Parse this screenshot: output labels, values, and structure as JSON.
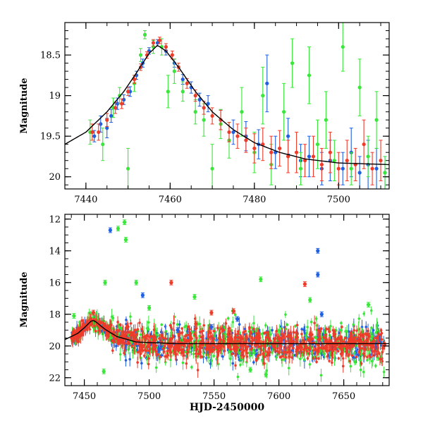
{
  "chart_data": [
    {
      "type": "scatter",
      "panel": "top",
      "title": "",
      "xlabel": "",
      "ylabel": "Magnitude",
      "xlim": [
        7435,
        7512
      ],
      "ylim": [
        20.15,
        18.1
      ],
      "y_inverted": true,
      "xticks": [
        7440,
        7460,
        7480,
        7500
      ],
      "yticks": [
        18.5,
        19,
        19.5,
        20
      ],
      "ytick_labels": [
        "18.5",
        "19",
        "19.5",
        "20"
      ],
      "grid": false,
      "legend": "none",
      "series": [
        {
          "color": "#1f5fe0",
          "points": [
            {
              "x": 7442,
              "y": 19.5,
              "err": 0.07
            },
            {
              "x": 7443.5,
              "y": 19.35,
              "err": 0.1
            },
            {
              "x": 7445,
              "y": 19.4,
              "err": 0.12
            },
            {
              "x": 7446,
              "y": 19.25,
              "err": 0.08
            },
            {
              "x": 7447.5,
              "y": 19.1,
              "err": 0.07
            },
            {
              "x": 7449,
              "y": 19.05,
              "err": 0.06
            },
            {
              "x": 7450.5,
              "y": 18.95,
              "err": 0.06
            },
            {
              "x": 7452,
              "y": 18.75,
              "err": 0.05
            },
            {
              "x": 7453.5,
              "y": 18.6,
              "err": 0.05
            },
            {
              "x": 7455,
              "y": 18.45,
              "err": 0.04
            },
            {
              "x": 7457,
              "y": 18.35,
              "err": 0.04
            },
            {
              "x": 7459,
              "y": 18.45,
              "err": 0.05
            },
            {
              "x": 7461,
              "y": 18.6,
              "err": 0.05
            },
            {
              "x": 7463,
              "y": 18.8,
              "err": 0.06
            },
            {
              "x": 7465,
              "y": 18.9,
              "err": 0.07
            },
            {
              "x": 7467,
              "y": 19.05,
              "err": 0.08
            },
            {
              "x": 7469,
              "y": 19.1,
              "err": 0.1
            },
            {
              "x": 7472,
              "y": 19.3,
              "err": 0.12
            },
            {
              "x": 7475,
              "y": 19.45,
              "err": 0.15
            },
            {
              "x": 7478,
              "y": 19.5,
              "err": 0.18
            },
            {
              "x": 7481,
              "y": 19.6,
              "err": 0.18
            },
            {
              "x": 7483,
              "y": 18.85,
              "err": 0.35
            },
            {
              "x": 7485,
              "y": 19.7,
              "err": 0.2
            },
            {
              "x": 7488,
              "y": 19.5,
              "err": 0.22
            },
            {
              "x": 7491,
              "y": 19.8,
              "err": 0.2
            },
            {
              "x": 7493,
              "y": 19.75,
              "err": 0.25
            },
            {
              "x": 7496,
              "y": 19.9,
              "err": 0.2
            },
            {
              "x": 7498,
              "y": 19.8,
              "err": 0.25
            },
            {
              "x": 7501,
              "y": 19.9,
              "err": 0.2
            },
            {
              "x": 7503,
              "y": 19.7,
              "err": 0.3
            },
            {
              "x": 7505,
              "y": 19.95,
              "err": 0.2
            },
            {
              "x": 7507,
              "y": 19.85,
              "err": 0.3
            },
            {
              "x": 7509,
              "y": 19.9,
              "err": 0.25
            },
            {
              "x": 7511,
              "y": 19.95,
              "err": 0.2
            }
          ]
        },
        {
          "color": "#39e639",
          "points": [
            {
              "x": 7441,
              "y": 19.45,
              "err": 0.15
            },
            {
              "x": 7444,
              "y": 19.6,
              "err": 0.2
            },
            {
              "x": 7446.5,
              "y": 19.15,
              "err": 0.12
            },
            {
              "x": 7448,
              "y": 19.0,
              "err": 0.1
            },
            {
              "x": 7450,
              "y": 19.9,
              "err": 0.25
            },
            {
              "x": 7451.5,
              "y": 18.85,
              "err": 0.1
            },
            {
              "x": 7453,
              "y": 18.5,
              "err": 0.08
            },
            {
              "x": 7454,
              "y": 18.25,
              "err": 0.05
            },
            {
              "x": 7456,
              "y": 18.4,
              "err": 0.08
            },
            {
              "x": 7458,
              "y": 18.4,
              "err": 0.1
            },
            {
              "x": 7459.5,
              "y": 18.95,
              "err": 0.2
            },
            {
              "x": 7461,
              "y": 18.7,
              "err": 0.15
            },
            {
              "x": 7463,
              "y": 18.95,
              "err": 0.12
            },
            {
              "x": 7466,
              "y": 19.2,
              "err": 0.15
            },
            {
              "x": 7468,
              "y": 19.3,
              "err": 0.2
            },
            {
              "x": 7470,
              "y": 19.9,
              "err": 0.3
            },
            {
              "x": 7472,
              "y": 19.35,
              "err": 0.18
            },
            {
              "x": 7474,
              "y": 19.55,
              "err": 0.22
            },
            {
              "x": 7477,
              "y": 19.2,
              "err": 0.3
            },
            {
              "x": 7480,
              "y": 19.7,
              "err": 0.25
            },
            {
              "x": 7482,
              "y": 19.0,
              "err": 0.35
            },
            {
              "x": 7484,
              "y": 19.85,
              "err": 0.25
            },
            {
              "x": 7487,
              "y": 19.2,
              "err": 0.35
            },
            {
              "x": 7489,
              "y": 18.6,
              "err": 0.3
            },
            {
              "x": 7491,
              "y": 19.9,
              "err": 0.2
            },
            {
              "x": 7493,
              "y": 18.75,
              "err": 0.35
            },
            {
              "x": 7495,
              "y": 19.6,
              "err": 0.3
            },
            {
              "x": 7497,
              "y": 19.3,
              "err": 0.35
            },
            {
              "x": 7499,
              "y": 19.8,
              "err": 0.25
            },
            {
              "x": 7501,
              "y": 18.4,
              "err": 0.3
            },
            {
              "x": 7503,
              "y": 19.9,
              "err": 0.2
            },
            {
              "x": 7505,
              "y": 18.9,
              "err": 0.35
            },
            {
              "x": 7507,
              "y": 19.75,
              "err": 0.25
            },
            {
              "x": 7509,
              "y": 19.3,
              "err": 0.35
            },
            {
              "x": 7511,
              "y": 19.95,
              "err": 0.2
            }
          ]
        },
        {
          "color": "#ee3b2a",
          "points": [
            {
              "x": 7441.5,
              "y": 19.45,
              "err": 0.1
            },
            {
              "x": 7443,
              "y": 19.45,
              "err": 0.1
            },
            {
              "x": 7445,
              "y": 19.3,
              "err": 0.08
            },
            {
              "x": 7447,
              "y": 19.15,
              "err": 0.07
            },
            {
              "x": 7448.5,
              "y": 19.1,
              "err": 0.06
            },
            {
              "x": 7450,
              "y": 18.95,
              "err": 0.05
            },
            {
              "x": 7451.5,
              "y": 18.8,
              "err": 0.05
            },
            {
              "x": 7453,
              "y": 18.65,
              "err": 0.04
            },
            {
              "x": 7454.5,
              "y": 18.5,
              "err": 0.04
            },
            {
              "x": 7456,
              "y": 18.35,
              "err": 0.04
            },
            {
              "x": 7457.5,
              "y": 18.32,
              "err": 0.04
            },
            {
              "x": 7459,
              "y": 18.4,
              "err": 0.04
            },
            {
              "x": 7460.5,
              "y": 18.5,
              "err": 0.05
            },
            {
              "x": 7462,
              "y": 18.65,
              "err": 0.05
            },
            {
              "x": 7464,
              "y": 18.85,
              "err": 0.06
            },
            {
              "x": 7466,
              "y": 19.0,
              "err": 0.07
            },
            {
              "x": 7468,
              "y": 19.15,
              "err": 0.08
            },
            {
              "x": 7470,
              "y": 19.25,
              "err": 0.1
            },
            {
              "x": 7472,
              "y": 19.3,
              "err": 0.12
            },
            {
              "x": 7474,
              "y": 19.45,
              "err": 0.12
            },
            {
              "x": 7476,
              "y": 19.5,
              "err": 0.15
            },
            {
              "x": 7478,
              "y": 19.55,
              "err": 0.15
            },
            {
              "x": 7480,
              "y": 19.65,
              "err": 0.18
            },
            {
              "x": 7482,
              "y": 19.6,
              "err": 0.2
            },
            {
              "x": 7484,
              "y": 19.7,
              "err": 0.2
            },
            {
              "x": 7486,
              "y": 19.65,
              "err": 0.22
            },
            {
              "x": 7488,
              "y": 19.75,
              "err": 0.2
            },
            {
              "x": 7490,
              "y": 19.7,
              "err": 0.25
            },
            {
              "x": 7492,
              "y": 19.8,
              "err": 0.2
            },
            {
              "x": 7494,
              "y": 19.75,
              "err": 0.25
            },
            {
              "x": 7496,
              "y": 19.85,
              "err": 0.2
            },
            {
              "x": 7498,
              "y": 19.7,
              "err": 0.25
            },
            {
              "x": 7500,
              "y": 19.9,
              "err": 0.2
            },
            {
              "x": 7502,
              "y": 19.8,
              "err": 0.25
            },
            {
              "x": 7504,
              "y": 19.85,
              "err": 0.2
            },
            {
              "x": 7506,
              "y": 19.6,
              "err": 0.3
            },
            {
              "x": 7508,
              "y": 19.9,
              "err": 0.2
            },
            {
              "x": 7510,
              "y": 19.8,
              "err": 0.25
            }
          ]
        }
      ],
      "model_curve": {
        "color": "#000000",
        "x": [
          7435,
          7440,
          7445,
          7449,
          7452,
          7455,
          7457,
          7459,
          7462,
          7466,
          7470,
          7475,
          7480,
          7486,
          7492,
          7500,
          7512
        ],
        "y": [
          19.6,
          19.45,
          19.2,
          18.95,
          18.72,
          18.48,
          18.38,
          18.45,
          18.65,
          18.95,
          19.2,
          19.42,
          19.58,
          19.7,
          19.78,
          19.83,
          19.85
        ]
      }
    },
    {
      "type": "scatter",
      "panel": "bottom",
      "title": "",
      "xlabel": "HJD-2450000",
      "ylabel": "Magnitude",
      "xlim": [
        7435,
        7685
      ],
      "ylim": [
        22.5,
        11.7
      ],
      "y_inverted": true,
      "xticks": [
        7450,
        7500,
        7550,
        7600,
        7650
      ],
      "yticks": [
        12,
        14,
        16,
        18,
        20,
        22
      ],
      "ytick_labels": [
        "12",
        "14",
        "16",
        "18",
        "20",
        "22"
      ],
      "grid": false,
      "legend": "none",
      "series": [
        {
          "color": "#1f5fe0",
          "outliers": [
            {
              "x": 7470,
              "y": 12.7
            },
            {
              "x": 7495,
              "y": 16.8
            },
            {
              "x": 7630,
              "y": 14.0
            },
            {
              "x": 7630,
              "y": 15.5
            },
            {
              "x": 7633,
              "y": 18.0
            },
            {
              "x": 7568,
              "y": 18.3
            },
            {
              "x": 7548,
              "y": 18.8
            },
            {
              "x": 7522,
              "y": 19.0
            }
          ]
        },
        {
          "color": "#39e639",
          "outliers": [
            {
              "x": 7476,
              "y": 12.6
            },
            {
              "x": 7481,
              "y": 12.2
            },
            {
              "x": 7482,
              "y": 13.3
            },
            {
              "x": 7466,
              "y": 16.0
            },
            {
              "x": 7490,
              "y": 16.0
            },
            {
              "x": 7535,
              "y": 16.9
            },
            {
              "x": 7586,
              "y": 15.8
            },
            {
              "x": 7624,
              "y": 17.1
            },
            {
              "x": 7669,
              "y": 17.4
            },
            {
              "x": 7500,
              "y": 17.6
            },
            {
              "x": 7442,
              "y": 18.1
            },
            {
              "x": 7578,
              "y": 21.5
            },
            {
              "x": 7590,
              "y": 21.8
            },
            {
              "x": 7465,
              "y": 21.6
            }
          ]
        },
        {
          "color": "#ee3b2a",
          "outliers": [
            {
              "x": 7517,
              "y": 16.0
            },
            {
              "x": 7620,
              "y": 16.1
            },
            {
              "x": 7457,
              "y": 17.9
            },
            {
              "x": 7548,
              "y": 17.9
            },
            {
              "x": 7565,
              "y": 17.8
            },
            {
              "x": 7536,
              "y": 18.6
            }
          ]
        }
      ],
      "dense_band": {
        "x_range": [
          7440,
          7682
        ],
        "baseline_mag": 20.0,
        "scatter_mag": 0.5,
        "peak": {
          "x": 7457,
          "y": 18.3
        }
      },
      "model_curve": {
        "color": "#000000",
        "x": [
          7435,
          7445,
          7450,
          7455,
          7457,
          7460,
          7466,
          7475,
          7490,
          7520,
          7600,
          7685
        ],
        "y": [
          19.6,
          19.2,
          18.85,
          18.45,
          18.38,
          18.55,
          18.95,
          19.4,
          19.75,
          19.85,
          19.85,
          19.85
        ]
      }
    }
  ]
}
